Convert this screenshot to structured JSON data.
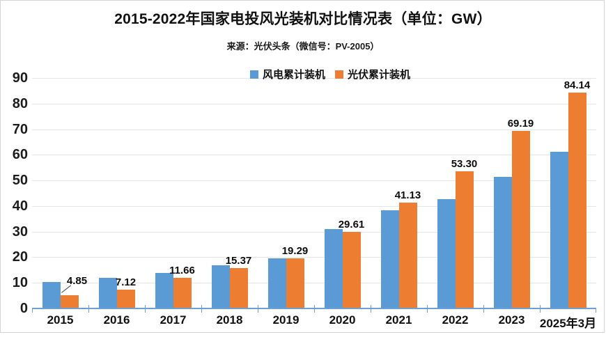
{
  "page": {
    "title": "2015-2022年国家电投风光装机对比情况表（单位：GW）",
    "subtitle": "来源：光伏头条（微信号：PV-2005）"
  },
  "colors": {
    "wind_blue": "#5B9BD5",
    "solar_orange": "#ED7D31",
    "axis_blue": "#6BA1D6",
    "gridline_gray": "#E6E6E6",
    "frame_gray": "#D5D5D5",
    "label_black": "#0D0D0D"
  },
  "chart_data": {
    "type": "bar",
    "title": "2015-2022年国家电投风光装机对比情况表（单位：GW）",
    "subtitle": "来源：光伏头条（微信号：PV-2005）",
    "unit": "GW",
    "categories": [
      "2015",
      "2016",
      "2017",
      "2018",
      "2019",
      "2020",
      "2021",
      "2022",
      "2023",
      "2025年3月"
    ],
    "series": [
      {
        "name": "风电累计装机",
        "color": "#5B9BD5",
        "values": [
          10.1,
          11.7,
          13.7,
          16.5,
          19.2,
          30.8,
          38.2,
          42.3,
          51.0,
          60.8
        ],
        "labels": []
      },
      {
        "name": "光伏累计装机",
        "color": "#ED7D31",
        "values": [
          4.85,
          7.12,
          11.66,
          15.37,
          19.29,
          29.61,
          41.13,
          53.3,
          69.19,
          84.14
        ],
        "labels": [
          "4.85",
          "7.12",
          "11.66",
          "15.37",
          "19.29",
          "29.61",
          "41.13",
          "53.30",
          "69.19",
          "84.14"
        ]
      }
    ],
    "ylim": [
      0,
      90
    ],
    "yticks": [
      0,
      10,
      20,
      30,
      40,
      50,
      60,
      70,
      80,
      90
    ],
    "xlabel": "",
    "ylabel": "",
    "grid": "horizontal",
    "legend_position": "top-center",
    "callout": {
      "series": "光伏累计装机",
      "category": "2015",
      "label": "4.85",
      "has_leader_line": true
    }
  }
}
